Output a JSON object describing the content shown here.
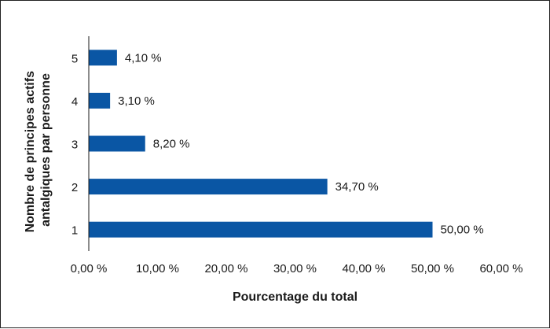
{
  "chart_data": {
    "type": "bar",
    "orientation": "horizontal",
    "categories": [
      "1",
      "2",
      "3",
      "4",
      "5"
    ],
    "values": [
      50.0,
      34.7,
      8.2,
      3.1,
      4.1
    ],
    "value_labels": [
      "50,00 %",
      "34,70 %",
      "8,20 %",
      "3,10 %",
      "4,10 %"
    ],
    "xlabel": "Pourcentage du total",
    "ylabel_lines": [
      "Nombre de principes actifs",
      "antalgiques par personne"
    ],
    "xlim": [
      0,
      60
    ],
    "x_ticks": [
      0,
      10,
      20,
      30,
      40,
      50,
      60
    ],
    "x_tick_labels": [
      "0,00 %",
      "10,00 %",
      "20,00 %",
      "30,00 %",
      "40,00 %",
      "50,00 %",
      "60,00 %"
    ],
    "grid": false,
    "legend": "none",
    "bar_color": "#0a56a4"
  }
}
